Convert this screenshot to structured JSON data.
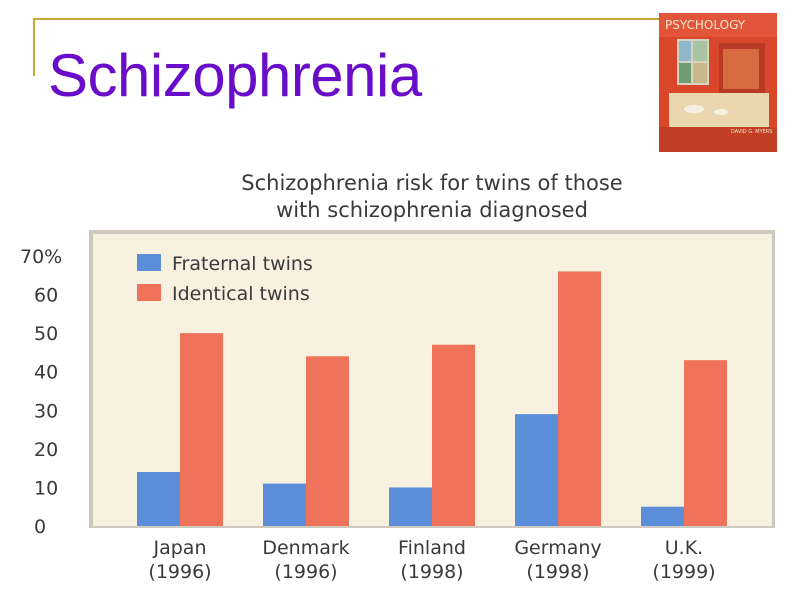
{
  "slide": {
    "title": "Schizophrenia"
  },
  "book_cover": {
    "title": "PSYCHOLOGY",
    "author": "DAVID G. MYERS"
  },
  "chart_data": {
    "type": "bar",
    "title": "Schizophrenia risk for twins of those with schizophrenia diagnosed",
    "title_lines": [
      "Schizophrenia risk for twins of those",
      "with schizophrenia diagnosed"
    ],
    "categories": [
      "Japan (1996)",
      "Denmark (1996)",
      "Finland (1998)",
      "Germany (1998)",
      "U.K. (1999)"
    ],
    "category_lines": [
      [
        "Japan",
        "(1996)"
      ],
      [
        "Denmark",
        "(1996)"
      ],
      [
        "Finland",
        "(1998)"
      ],
      [
        "Germany",
        "(1998)"
      ],
      [
        "U.K.",
        "(1999)"
      ]
    ],
    "series": [
      {
        "name": "Fraternal twins",
        "color": "#5b8dd9",
        "values": [
          14,
          11,
          10,
          29,
          5
        ]
      },
      {
        "name": "Identical twins",
        "color": "#ef725a",
        "values": [
          50,
          44,
          47,
          66,
          43
        ]
      }
    ],
    "ylim": [
      0,
      70
    ],
    "yticks": [
      "0",
      "10",
      "20",
      "30",
      "40",
      "50",
      "60",
      "70%"
    ],
    "xlabel": "",
    "ylabel": "",
    "grid": false,
    "legend_position": "top-left",
    "plot_background": "#f8f1df"
  }
}
